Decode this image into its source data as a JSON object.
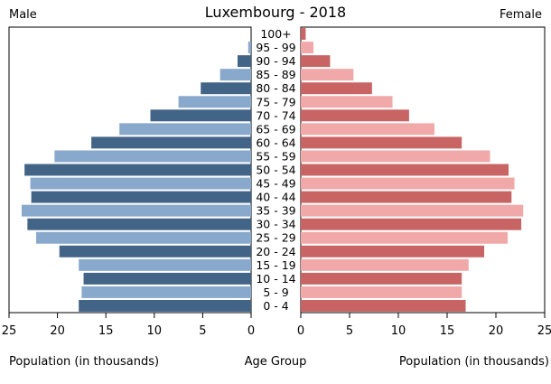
{
  "chart_data": {
    "type": "bar",
    "title": "Luxembourg - 2018",
    "left_label": "Male",
    "right_label": "Female",
    "xlabel_left": "Population (in thousands)",
    "xlabel_center": "Age Group",
    "xlabel_right": "Population (in thousands)",
    "xlim": [
      0,
      25
    ],
    "xticks": [
      0,
      5,
      10,
      15,
      20,
      25
    ],
    "grid": false,
    "categories": [
      "100+",
      "95 - 99",
      "90 - 94",
      "85 - 89",
      "80 - 84",
      "75 - 79",
      "70 - 74",
      "65 - 69",
      "60 - 64",
      "55 - 59",
      "50 - 54",
      "45 - 49",
      "40 - 44",
      "35 - 39",
      "30 - 34",
      "25 - 29",
      "20 - 24",
      "15 - 19",
      "10 - 14",
      "5 - 9",
      "0 - 4"
    ],
    "series": [
      {
        "name": "Male",
        "side": "left",
        "values": [
          0.0,
          0.3,
          1.4,
          3.2,
          5.2,
          7.5,
          10.4,
          13.6,
          16.5,
          20.3,
          23.4,
          22.8,
          22.7,
          23.7,
          23.1,
          22.2,
          19.8,
          17.8,
          17.3,
          17.5,
          17.8
        ],
        "colors": [
          "#426487",
          "#88a8cc"
        ]
      },
      {
        "name": "Female",
        "side": "right",
        "values": [
          0.5,
          1.3,
          3.0,
          5.4,
          7.3,
          9.4,
          11.1,
          13.7,
          16.5,
          19.4,
          21.3,
          21.9,
          21.6,
          22.8,
          22.6,
          21.2,
          18.8,
          17.2,
          16.5,
          16.5,
          16.9
        ],
        "colors": [
          "#c86464",
          "#f0a8a8"
        ]
      }
    ]
  }
}
